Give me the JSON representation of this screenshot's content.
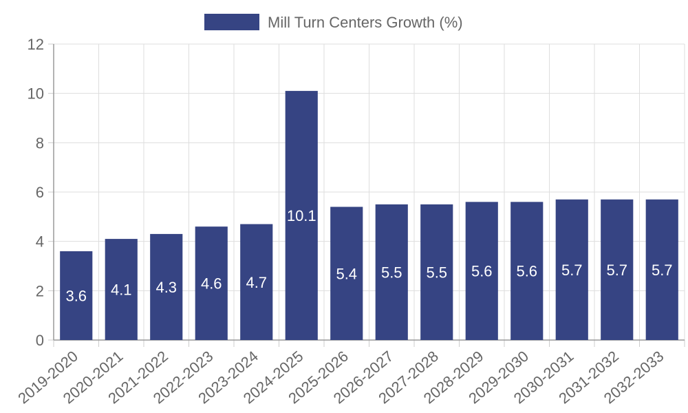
{
  "chart_data": {
    "type": "bar",
    "title": "",
    "xlabel": "",
    "ylabel": "",
    "ylim": [
      0,
      12
    ],
    "yticks": [
      0,
      2,
      4,
      6,
      8,
      10,
      12
    ],
    "grid": true,
    "legend_position": "top",
    "bar_color": "#364483",
    "categories": [
      "2019-2020",
      "2020-2021",
      "2021-2022",
      "2022-2023",
      "2023-2024",
      "2024-2025",
      "2025-2026",
      "2026-2027",
      "2027-2028",
      "2028-2029",
      "2029-2030",
      "2030-2031",
      "2031-2032",
      "2032-2033"
    ],
    "series": [
      {
        "name": "Mill Turn Centers Growth (%)",
        "values": [
          3.6,
          4.1,
          4.3,
          4.6,
          4.7,
          10.1,
          5.4,
          5.5,
          5.5,
          5.6,
          5.6,
          5.7,
          5.7,
          5.7
        ],
        "labels": [
          "3.6",
          "4.1",
          "4.3",
          "4.6",
          "4.7",
          "10.1",
          "5.4",
          "5.5",
          "5.5",
          "5.6",
          "5.6",
          "5.7",
          "5.7",
          "5.7"
        ]
      }
    ]
  }
}
